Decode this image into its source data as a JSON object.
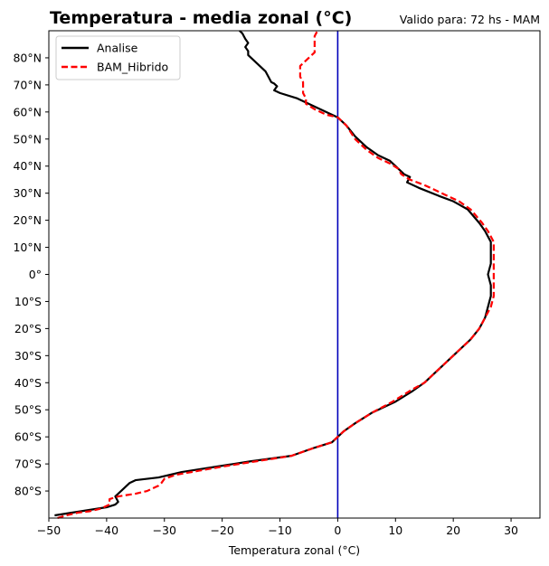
{
  "chart_data": {
    "type": "line",
    "title": "Temperatura - media zonal (°C)",
    "subtitle": "Valido para: 72 hs - MAM",
    "xlabel": "Temperatura zonal (°C)",
    "ylabel": "",
    "xlim": [
      -50,
      35
    ],
    "ylim": [
      -90,
      90
    ],
    "x_ticks": [
      -50,
      -40,
      -30,
      -20,
      -10,
      0,
      10,
      20,
      30
    ],
    "x_tick_labels": [
      "−50",
      "−40",
      "−30",
      "−20",
      "−10",
      "0",
      "10",
      "20",
      "30"
    ],
    "y_ticks": [
      -80,
      -70,
      -60,
      -50,
      -40,
      -30,
      -20,
      -10,
      0,
      10,
      20,
      30,
      40,
      50,
      60,
      70,
      80
    ],
    "y_tick_labels": [
      "80°S",
      "70°S",
      "60°S",
      "50°S",
      "40°S",
      "30°S",
      "20°S",
      "10°S",
      "0°",
      "10°N",
      "20°N",
      "30°N",
      "40°N",
      "50°N",
      "60°N",
      "70°N",
      "80°N"
    ],
    "grid": false,
    "legend_position": "top-left",
    "reference_line": {
      "x": 0,
      "color": "#0000bb"
    },
    "series": [
      {
        "name": "Analise",
        "color": "#000000",
        "dash": "solid",
        "points": [
          [
            -49,
            -89
          ],
          [
            -46,
            -88
          ],
          [
            -43,
            -87
          ],
          [
            -40,
            -86
          ],
          [
            -38.5,
            -85
          ],
          [
            -38,
            -84
          ],
          [
            -38.5,
            -82
          ],
          [
            -38,
            -81
          ],
          [
            -37.5,
            -80
          ],
          [
            -36.5,
            -78
          ],
          [
            -36,
            -77
          ],
          [
            -35,
            -76
          ],
          [
            -31,
            -75
          ],
          [
            -27,
            -73
          ],
          [
            -21,
            -71
          ],
          [
            -15,
            -69
          ],
          [
            -8,
            -67
          ],
          [
            -4,
            -64
          ],
          [
            -1,
            -62
          ],
          [
            0,
            -60
          ],
          [
            1,
            -58
          ],
          [
            3,
            -55
          ],
          [
            6,
            -51
          ],
          [
            10,
            -47
          ],
          [
            13,
            -43
          ],
          [
            15,
            -40
          ],
          [
            17,
            -36
          ],
          [
            19,
            -32
          ],
          [
            21,
            -28
          ],
          [
            23,
            -24
          ],
          [
            24.5,
            -20
          ],
          [
            25.5,
            -16
          ],
          [
            26,
            -12
          ],
          [
            26.5,
            -8
          ],
          [
            26.5,
            -4
          ],
          [
            26,
            0
          ],
          [
            26.5,
            4
          ],
          [
            26.5,
            8
          ],
          [
            26.5,
            12
          ],
          [
            25.5,
            16
          ],
          [
            24.5,
            19
          ],
          [
            22.5,
            24
          ],
          [
            20,
            27
          ],
          [
            17.5,
            29
          ],
          [
            14,
            32
          ],
          [
            12,
            34
          ],
          [
            12.5,
            36
          ],
          [
            11.5,
            37
          ],
          [
            10.5,
            39
          ],
          [
            9,
            42
          ],
          [
            7,
            44
          ],
          [
            5,
            47
          ],
          [
            3,
            51
          ],
          [
            1.5,
            55
          ],
          [
            0,
            58
          ],
          [
            -2,
            60
          ],
          [
            -4,
            62
          ],
          [
            -7,
            65
          ],
          [
            -10,
            67
          ],
          [
            -11,
            68
          ],
          [
            -10.5,
            69.5
          ],
          [
            -11,
            70.5
          ],
          [
            -11.5,
            71
          ],
          [
            -12,
            73
          ],
          [
            -12.5,
            75
          ],
          [
            -13.5,
            77
          ],
          [
            -14.5,
            79
          ],
          [
            -15.5,
            81
          ],
          [
            -15.5,
            82.5
          ],
          [
            -16,
            84
          ],
          [
            -15.5,
            85.5
          ],
          [
            -16,
            87
          ],
          [
            -16.5,
            89
          ],
          [
            -17,
            90
          ]
        ]
      },
      {
        "name": "BAM_Hibrido",
        "color": "#ff0000",
        "dash": "dashed",
        "points": [
          [
            -48.5,
            -90
          ],
          [
            -47,
            -89
          ],
          [
            -45,
            -88
          ],
          [
            -43,
            -87.5
          ],
          [
            -41,
            -86.5
          ],
          [
            -39.5,
            -85
          ],
          [
            -39.5,
            -83
          ],
          [
            -38,
            -82
          ],
          [
            -35,
            -81
          ],
          [
            -33,
            -80
          ],
          [
            -32,
            -79
          ],
          [
            -31,
            -78
          ],
          [
            -30.5,
            -77
          ],
          [
            -30,
            -75.5
          ],
          [
            -28,
            -74
          ],
          [
            -24,
            -72.5
          ],
          [
            -20,
            -71
          ],
          [
            -14,
            -69
          ],
          [
            -8,
            -67
          ],
          [
            -4,
            -64
          ],
          [
            -1,
            -62
          ],
          [
            0,
            -60
          ],
          [
            1,
            -58
          ],
          [
            3,
            -55
          ],
          [
            6,
            -51
          ],
          [
            9.5,
            -47
          ],
          [
            12.5,
            -43
          ],
          [
            15,
            -40
          ],
          [
            17,
            -36
          ],
          [
            19,
            -32
          ],
          [
            21,
            -28
          ],
          [
            23,
            -24
          ],
          [
            24.5,
            -20
          ],
          [
            25.5,
            -16
          ],
          [
            26.5,
            -12
          ],
          [
            27,
            -8
          ],
          [
            27,
            -4
          ],
          [
            27,
            0
          ],
          [
            27,
            4
          ],
          [
            27,
            8
          ],
          [
            27,
            12
          ],
          [
            26,
            16
          ],
          [
            25,
            19
          ],
          [
            23,
            24
          ],
          [
            21,
            27
          ],
          [
            19,
            29
          ],
          [
            17,
            31
          ],
          [
            15,
            33
          ],
          [
            12.5,
            35
          ],
          [
            11,
            37
          ],
          [
            10.5,
            39
          ],
          [
            9,
            41
          ],
          [
            7,
            43
          ],
          [
            5,
            46
          ],
          [
            3,
            50
          ],
          [
            1.5,
            55
          ],
          [
            0,
            58
          ],
          [
            -2,
            59
          ],
          [
            -4,
            61
          ],
          [
            -5.5,
            63
          ],
          [
            -5.5,
            65
          ],
          [
            -6,
            67
          ],
          [
            -6,
            69
          ],
          [
            -6,
            71
          ],
          [
            -6.5,
            73
          ],
          [
            -6.5,
            75
          ],
          [
            -6.5,
            77
          ],
          [
            -5,
            80
          ],
          [
            -4,
            82
          ],
          [
            -4,
            84
          ],
          [
            -4,
            86
          ],
          [
            -4,
            88
          ],
          [
            -3.5,
            90
          ]
        ]
      }
    ]
  }
}
